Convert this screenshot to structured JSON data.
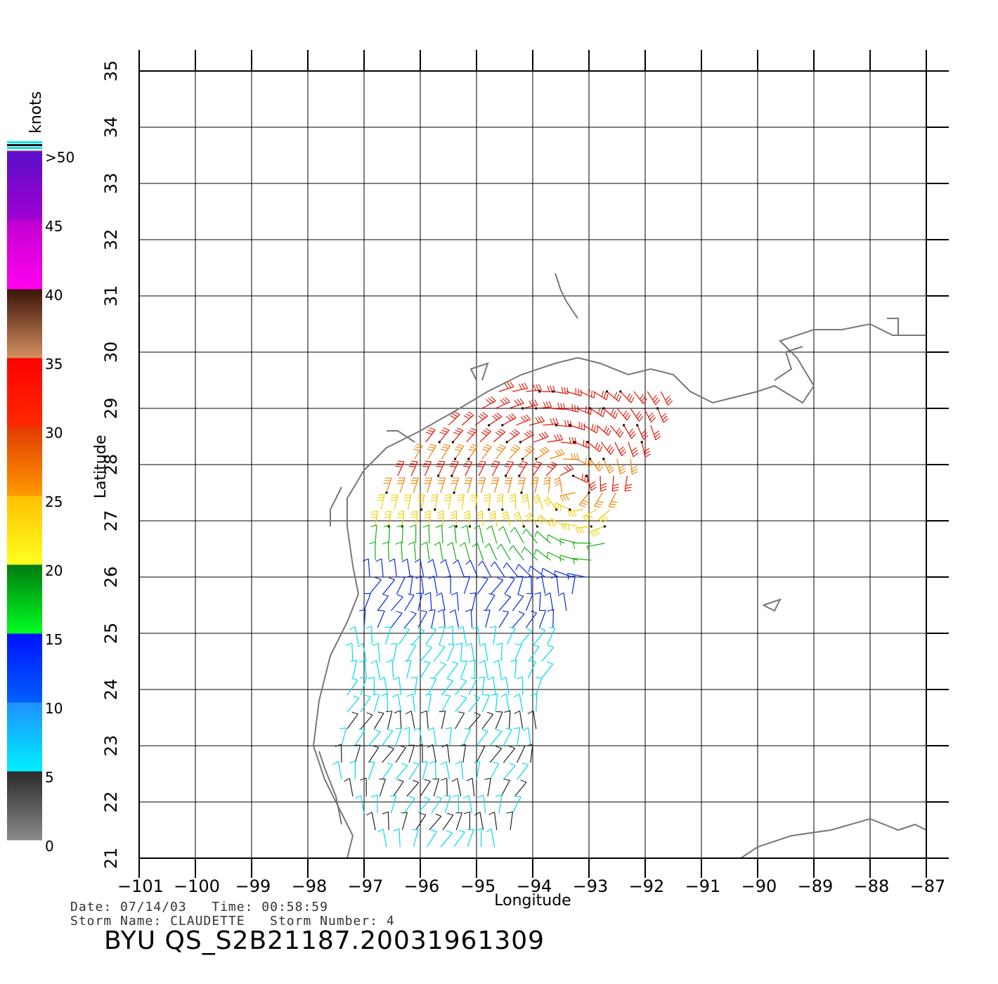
{
  "map": {
    "lon_range": [
      -101,
      -87
    ],
    "lat_range": [
      21,
      35
    ],
    "x_ticks": [
      -101,
      -100,
      -99,
      -98,
      -97,
      -96,
      -95,
      -94,
      -93,
      -92,
      -91,
      -90,
      -89,
      -88,
      -87
    ],
    "y_ticks": [
      21,
      22,
      23,
      24,
      25,
      26,
      27,
      28,
      29,
      30,
      31,
      32,
      33,
      34,
      35
    ],
    "xlabel": "Longitude",
    "ylabel": "Latitude",
    "grid": true,
    "coastline_color": "#777777"
  },
  "legend": {
    "unit": "knots",
    "labels": [
      ">50",
      "45",
      "40",
      "35",
      "30",
      "25",
      "20",
      "15",
      "10",
      "5",
      "0"
    ],
    "bands": [
      {
        "from": 0,
        "to": 5,
        "top": "#2a2a2a",
        "bottom": "#8a8a8a"
      },
      {
        "from": 5,
        "to": 10,
        "top": "#1e90ff",
        "bottom": "#00f0ff"
      },
      {
        "from": 10,
        "to": 15,
        "top": "#0010ff",
        "bottom": "#0060ff"
      },
      {
        "from": 15,
        "to": 20,
        "top": "#007a10",
        "bottom": "#00ff20"
      },
      {
        "from": 20,
        "to": 25,
        "top": "#ffc000",
        "bottom": "#ffff20"
      },
      {
        "from": 25,
        "to": 30,
        "top": "#e03a00",
        "bottom": "#ff9a00"
      },
      {
        "from": 30,
        "to": 35,
        "top": "#ff0000",
        "bottom": "#ff2a00"
      },
      {
        "from": 35,
        "to": 40,
        "top": "#3a1208",
        "bottom": "#d49060"
      },
      {
        "from": 40,
        "to": 45,
        "top": "#c000d0",
        "bottom": "#ff00f0"
      },
      {
        "from": 45,
        "to": 50,
        "top": "#5a10c8",
        "bottom": "#a000d0"
      }
    ],
    "top_stripes": [
      "#00e8f0",
      "#101010",
      "#00e8f0",
      "#f0b0b0"
    ]
  },
  "wind_field": {
    "speed_colors": {
      "calm": "#222222",
      "light": "#00d8e8",
      "moderate": "#0028e0",
      "fresh": "#10b010",
      "strong": "#f0d000",
      "gale": "#f08000",
      "storm": "#e01000",
      "violent": "#9000c0"
    },
    "rows": [
      {
        "lat": 29.3,
        "lon_start": -94.6,
        "lon_end": -91.6,
        "category": "storm"
      },
      {
        "lat": 29.0,
        "lon_start": -94.9,
        "lon_end": -91.6,
        "category": "storm"
      },
      {
        "lat": 28.7,
        "lon_start": -95.5,
        "lon_end": -91.8,
        "category": "storm"
      },
      {
        "lat": 28.4,
        "lon_start": -95.9,
        "lon_end": -92.0,
        "category": "storm"
      },
      {
        "lat": 28.1,
        "lon_start": -96.1,
        "lon_end": -92.1,
        "category": "gale"
      },
      {
        "lat": 27.8,
        "lon_start": -96.4,
        "lon_end": -92.2,
        "category": "storm"
      },
      {
        "lat": 27.5,
        "lon_start": -96.6,
        "lon_end": -92.3,
        "category": "gale"
      },
      {
        "lat": 27.2,
        "lon_start": -96.7,
        "lon_end": -92.4,
        "category": "strong"
      },
      {
        "lat": 26.9,
        "lon_start": -96.8,
        "lon_end": -92.5,
        "category": "strong"
      },
      {
        "lat": 26.6,
        "lon_start": -96.8,
        "lon_end": -92.6,
        "category": "fresh"
      },
      {
        "lat": 26.3,
        "lon_start": -96.8,
        "lon_end": -92.8,
        "category": "fresh"
      },
      {
        "lat": 26.0,
        "lon_start": -96.9,
        "lon_end": -93.0,
        "category": "moderate"
      },
      {
        "lat": 25.7,
        "lon_start": -96.9,
        "lon_end": -93.2,
        "category": "moderate"
      },
      {
        "lat": 25.4,
        "lon_start": -97.0,
        "lon_end": -93.4,
        "category": "moderate"
      },
      {
        "lat": 25.1,
        "lon_start": -97.0,
        "lon_end": -93.5,
        "category": "moderate"
      },
      {
        "lat": 24.8,
        "lon_start": -97.1,
        "lon_end": -93.6,
        "category": "light"
      },
      {
        "lat": 24.5,
        "lon_start": -97.2,
        "lon_end": -93.7,
        "category": "light"
      },
      {
        "lat": 24.2,
        "lon_start": -97.2,
        "lon_end": -93.8,
        "category": "light"
      },
      {
        "lat": 23.9,
        "lon_start": -97.3,
        "lon_end": -93.8,
        "category": "light"
      },
      {
        "lat": 23.6,
        "lon_start": -97.3,
        "lon_end": -93.9,
        "category": "light"
      },
      {
        "lat": 23.3,
        "lon_start": -97.3,
        "lon_end": -93.9,
        "category": "calm"
      },
      {
        "lat": 23.0,
        "lon_start": -97.4,
        "lon_end": -94.0,
        "category": "light"
      },
      {
        "lat": 22.7,
        "lon_start": -97.4,
        "lon_end": -94.0,
        "category": "calm"
      },
      {
        "lat": 22.4,
        "lon_start": -97.4,
        "lon_end": -94.1,
        "category": "light"
      },
      {
        "lat": 22.1,
        "lon_start": -97.2,
        "lon_end": -94.2,
        "category": "calm"
      },
      {
        "lat": 21.8,
        "lon_start": -97.0,
        "lon_end": -94.3,
        "category": "light"
      },
      {
        "lat": 21.5,
        "lon_start": -96.8,
        "lon_end": -94.4,
        "category": "calm"
      },
      {
        "lat": 21.2,
        "lon_start": -96.6,
        "lon_end": -94.6,
        "category": "light"
      }
    ]
  },
  "info": {
    "date_label": "Date:",
    "date_value": "07/14/03",
    "time_label": "Time:",
    "time_value": "00:58:59",
    "storm_name_label": "Storm Name:",
    "storm_name_value": "CLAUDETTE",
    "storm_number_label": "Storm Number:",
    "storm_number_value": "4",
    "product_title": "BYU QS_S2B21187.20031961309"
  }
}
